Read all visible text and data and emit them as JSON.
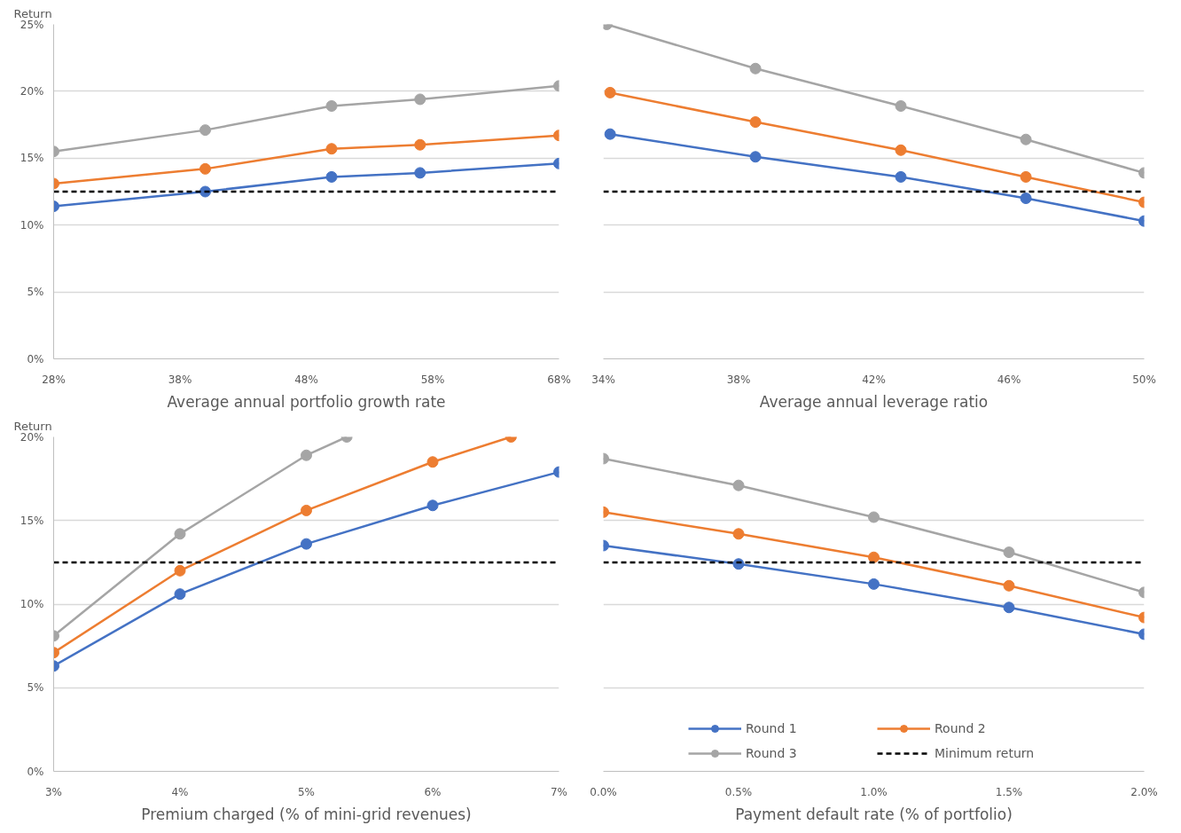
{
  "chart_data": [
    {
      "type": "line",
      "ylabel": "Return",
      "xlabel": "Average annual portfolio growth rate",
      "xlim": [
        28,
        68
      ],
      "ylim": [
        0,
        25
      ],
      "xticks": [
        {
          "value": 28,
          "label": "28%"
        },
        {
          "value": 38,
          "label": "38%"
        },
        {
          "value": 48,
          "label": "48%"
        },
        {
          "value": 58,
          "label": "58%"
        },
        {
          "value": 68,
          "label": "68%"
        }
      ],
      "yticks": [
        {
          "value": 0,
          "label": "0%"
        },
        {
          "value": 5,
          "label": "5%"
        },
        {
          "value": 10,
          "label": "10%"
        },
        {
          "value": 15,
          "label": "15%"
        },
        {
          "value": 20,
          "label": "20%"
        },
        {
          "value": 25,
          "label": "25%"
        }
      ],
      "grid": "y",
      "legend": false,
      "marker": "circle",
      "line_style": "solid",
      "x": [
        28,
        40,
        50,
        57,
        68
      ],
      "series": [
        {
          "color": "#4472c4",
          "values": [
            11.4,
            12.5,
            13.6,
            13.9,
            14.6
          ]
        },
        {
          "color": "#ed7d31",
          "values": [
            13.1,
            14.2,
            15.7,
            16.0,
            16.7
          ]
        },
        {
          "color": "#a5a5a5",
          "values": [
            15.5,
            17.1,
            18.9,
            19.4,
            20.4
          ]
        },
        {
          "color": "#000000",
          "x": [
            28,
            68
          ],
          "values": [
            12.5,
            12.5
          ],
          "marker": "none",
          "line_style": "dashed"
        }
      ]
    },
    {
      "type": "line",
      "xlabel": "Average annual leverage ratio",
      "xlim": [
        34,
        50
      ],
      "ylim": [
        0,
        25
      ],
      "xticks": [
        {
          "value": 34,
          "label": "34%"
        },
        {
          "value": 38,
          "label": "38%"
        },
        {
          "value": 42,
          "label": "42%"
        },
        {
          "value": 46,
          "label": "46%"
        },
        {
          "value": 50,
          "label": "50%"
        }
      ],
      "yticks": [
        0,
        5,
        10,
        15,
        20,
        25
      ],
      "tick_labels": "x",
      "grid": "y",
      "legend": false,
      "marker": "circle",
      "line_style": "solid",
      "x": [
        34.2,
        38.5,
        42.8,
        46.5,
        50
      ],
      "series": [
        {
          "color": "#4472c4",
          "values": [
            16.8,
            15.1,
            13.6,
            12.0,
            10.3
          ]
        },
        {
          "color": "#ed7d31",
          "values": [
            19.9,
            17.7,
            15.6,
            13.6,
            11.7
          ]
        },
        {
          "color": "#a5a5a5",
          "x": [
            34.1,
            38.5,
            42.8,
            46.5,
            50
          ],
          "values": [
            25.0,
            21.7,
            18.9,
            16.4,
            13.9
          ]
        },
        {
          "color": "#000000",
          "x": [
            34,
            50
          ],
          "values": [
            12.5,
            12.5
          ],
          "marker": "none",
          "line_style": "dashed"
        }
      ]
    },
    {
      "type": "line",
      "ylabel": "Return",
      "xlabel": "Premium charged (% of mini-grid revenues)",
      "xlim": [
        3,
        7
      ],
      "ylim": [
        0,
        20
      ],
      "xticks": [
        {
          "value": 3,
          "label": "3%"
        },
        {
          "value": 4,
          "label": "4%"
        },
        {
          "value": 5,
          "label": "5%"
        },
        {
          "value": 6,
          "label": "6%"
        },
        {
          "value": 7,
          "label": "7%"
        }
      ],
      "yticks": [
        {
          "value": 0,
          "label": "0%"
        },
        {
          "value": 5,
          "label": "5%"
        },
        {
          "value": 10,
          "label": "10%"
        },
        {
          "value": 15,
          "label": "15%"
        },
        {
          "value": 20,
          "label": "20%"
        }
      ],
      "grid": "y",
      "legend": false,
      "marker": "circle",
      "line_style": "solid",
      "x": [
        3,
        4,
        5,
        6,
        7
      ],
      "series": [
        {
          "color": "#4472c4",
          "values": [
            6.3,
            10.6,
            13.6,
            15.9,
            17.9
          ]
        },
        {
          "color": "#ed7d31",
          "x": [
            3,
            4,
            5,
            6,
            6.62
          ],
          "values": [
            7.1,
            12.0,
            15.6,
            18.5,
            20.0
          ]
        },
        {
          "color": "#a5a5a5",
          "x": [
            3,
            4,
            5,
            5.32
          ],
          "values": [
            8.1,
            14.2,
            18.9,
            20.0
          ]
        },
        {
          "color": "#000000",
          "x": [
            3,
            7
          ],
          "values": [
            12.5,
            12.5
          ],
          "marker": "none",
          "line_style": "dashed"
        }
      ]
    },
    {
      "type": "line",
      "xlabel": "Payment default rate (% of portfolio)",
      "xlim": [
        0,
        2
      ],
      "ylim": [
        0,
        20
      ],
      "xticks": [
        {
          "value": 0,
          "label": "0.0%"
        },
        {
          "value": 0.5,
          "label": "0.5%"
        },
        {
          "value": 1,
          "label": "1.0%"
        },
        {
          "value": 1.5,
          "label": "1.5%"
        },
        {
          "value": 2,
          "label": "2.0%"
        }
      ],
      "yticks": [
        0,
        5,
        10,
        15,
        20
      ],
      "tick_labels": "x",
      "grid": "y",
      "legend": "bottom",
      "marker": "circle",
      "line_style": "solid",
      "x": [
        0,
        0.5,
        1,
        1.5,
        2
      ],
      "series": [
        {
          "name": "Round 1",
          "color": "#4472c4",
          "values": [
            13.5,
            12.4,
            11.2,
            9.8,
            8.2
          ]
        },
        {
          "name": "Round 2",
          "color": "#ed7d31",
          "values": [
            15.5,
            14.2,
            12.8,
            11.1,
            9.2
          ]
        },
        {
          "name": "Round 3",
          "color": "#a5a5a5",
          "values": [
            18.7,
            17.1,
            15.2,
            13.1,
            10.7
          ]
        },
        {
          "name": "Minimum return",
          "color": "#000000",
          "x": [
            0,
            2
          ],
          "values": [
            12.5,
            12.5
          ],
          "marker": "none",
          "line_style": "dashed"
        }
      ]
    }
  ]
}
